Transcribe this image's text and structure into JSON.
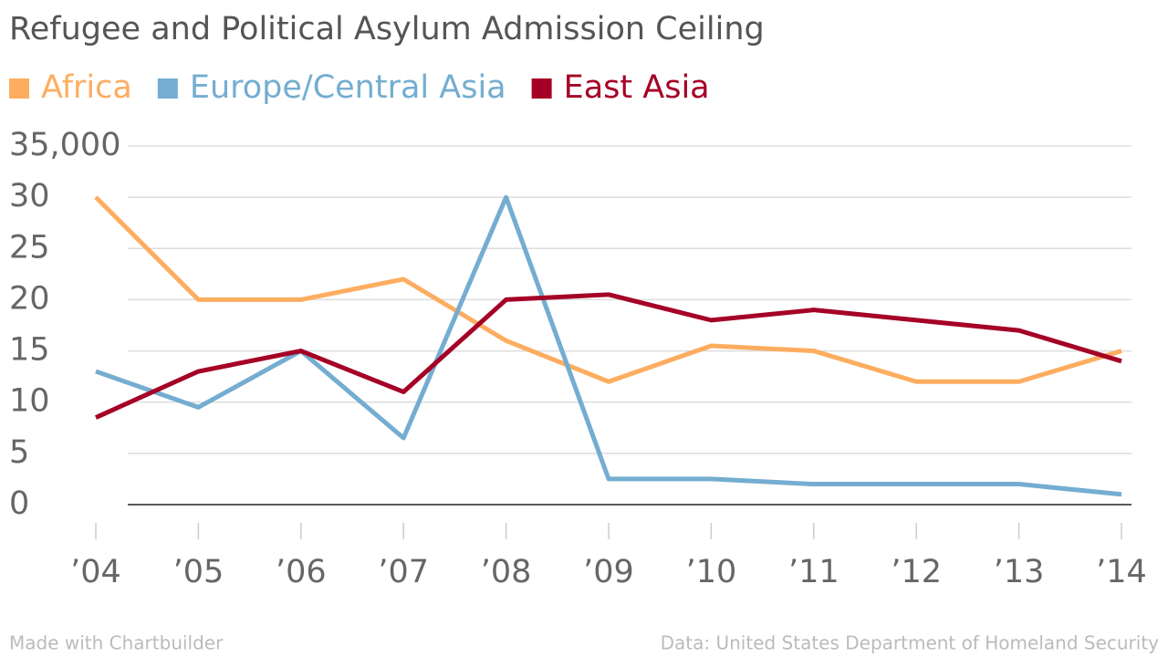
{
  "chart_data": {
    "type": "line",
    "title": "Refugee and Political Asylum Admission Ceiling",
    "categories": [
      "’04",
      "’05",
      "’06",
      "’07",
      "’08",
      "’09",
      "’10",
      "’11",
      "’12",
      "’13",
      "’14"
    ],
    "series": [
      {
        "name": "Africa",
        "color": "#fdad60",
        "values": [
          30000,
          20000,
          20000,
          22000,
          16000,
          12000,
          15500,
          15000,
          12000,
          12000,
          15000
        ]
      },
      {
        "name": "Europe/Central Asia",
        "color": "#74add1",
        "values": [
          13000,
          9500,
          15000,
          6500,
          30000,
          2500,
          2500,
          2000,
          2000,
          2000,
          1000
        ]
      },
      {
        "name": "East Asia",
        "color": "#a50026",
        "values": [
          8500,
          13000,
          15000,
          11000,
          20000,
          20500,
          18000,
          19000,
          18000,
          17000,
          14000
        ]
      }
    ],
    "ylim": [
      0,
      35000
    ],
    "yticks": [
      0,
      {
        "value": 5000,
        "label": "5"
      },
      {
        "value": 10000,
        "label": "10"
      },
      {
        "value": 15000,
        "label": "15"
      },
      {
        "value": 20000,
        "label": "20"
      },
      {
        "value": 25000,
        "label": "25"
      },
      {
        "value": 30000,
        "label": "30"
      },
      {
        "value": 35000,
        "label": "35,000"
      }
    ],
    "grid": true,
    "legend": "top",
    "credit": "Made with Chartbuilder",
    "source": "Data: United States Department of Homeland Security"
  }
}
